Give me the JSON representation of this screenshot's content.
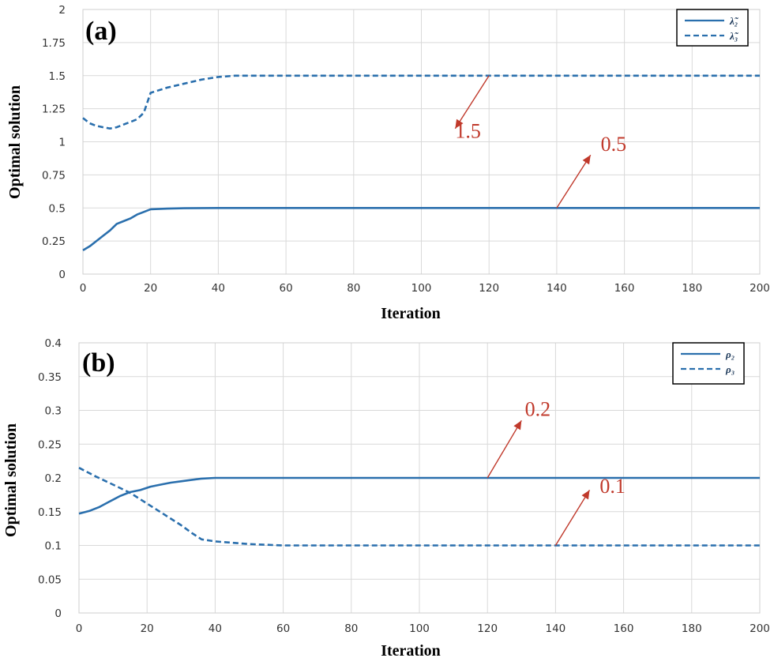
{
  "chart_data": [
    {
      "type": "line",
      "panel": "(a)",
      "xlabel": "Iteration",
      "ylabel": "Optimal solution",
      "xlim": [
        0,
        200
      ],
      "ylim": [
        0,
        2
      ],
      "xticks": [
        0,
        20,
        40,
        60,
        80,
        100,
        120,
        140,
        160,
        180,
        200
      ],
      "yticks": [
        0,
        0.25,
        0.5,
        0.75,
        1,
        1.25,
        1.5,
        1.75,
        2
      ],
      "ytick_labels": [
        "0",
        "0.25",
        "0.5",
        "0.75",
        "1",
        "1.25",
        "1.5",
        "1.75",
        "2"
      ],
      "grid": true,
      "legend_position": "top-right",
      "series": [
        {
          "name": "λ̃₂",
          "style": "solid",
          "color": "#2a6fad",
          "x": [
            0,
            2,
            4,
            6,
            8,
            10,
            12,
            14,
            16,
            18,
            20,
            25,
            30,
            40,
            60,
            100,
            140,
            200
          ],
          "y": [
            0.18,
            0.21,
            0.25,
            0.29,
            0.33,
            0.38,
            0.4,
            0.42,
            0.45,
            0.47,
            0.49,
            0.495,
            0.498,
            0.5,
            0.5,
            0.5,
            0.5,
            0.5
          ]
        },
        {
          "name": "λ̃₃",
          "style": "dashed",
          "color": "#2a6fad",
          "x": [
            0,
            2,
            4,
            6,
            8,
            10,
            12,
            14,
            16,
            18,
            20,
            25,
            30,
            35,
            40,
            45,
            60,
            100,
            150,
            200
          ],
          "y": [
            1.18,
            1.14,
            1.12,
            1.11,
            1.1,
            1.11,
            1.13,
            1.15,
            1.17,
            1.22,
            1.37,
            1.41,
            1.44,
            1.47,
            1.49,
            1.5,
            1.5,
            1.5,
            1.5,
            1.5
          ]
        }
      ],
      "annotations": [
        {
          "text": "1.5",
          "text_at": [
            110,
            1.03
          ],
          "arrow_from": [
            120,
            1.5
          ],
          "arrow_to": [
            110,
            1.1
          ]
        },
        {
          "text": "0.5",
          "text_at": [
            153,
            0.93
          ],
          "arrow_from": [
            140,
            0.5
          ],
          "arrow_to": [
            150,
            0.9
          ]
        }
      ]
    },
    {
      "type": "line",
      "panel": "(b)",
      "xlabel": "Iteration",
      "ylabel": "Optimal solution",
      "xlim": [
        0,
        200
      ],
      "ylim": [
        0,
        0.4
      ],
      "xticks": [
        0,
        20,
        40,
        60,
        80,
        100,
        120,
        140,
        160,
        180,
        200
      ],
      "yticks": [
        0,
        0.05,
        0.1,
        0.15,
        0.2,
        0.25,
        0.3,
        0.35,
        0.4
      ],
      "ytick_labels": [
        "0",
        "0.05",
        "0.1",
        "0.15",
        "0.2",
        "0.25",
        "0.3",
        "0.35",
        "0.4"
      ],
      "grid": true,
      "legend_position": "top-right",
      "series": [
        {
          "name": "ρ₂",
          "style": "solid",
          "color": "#2a6fad",
          "x": [
            0,
            3,
            6,
            9,
            12,
            15,
            18,
            21,
            24,
            27,
            30,
            33,
            36,
            40,
            60,
            100,
            200
          ],
          "y": [
            0.147,
            0.151,
            0.157,
            0.165,
            0.173,
            0.179,
            0.182,
            0.187,
            0.19,
            0.193,
            0.195,
            0.197,
            0.199,
            0.2,
            0.2,
            0.2,
            0.2
          ]
        },
        {
          "name": "ρ₃",
          "style": "dashed",
          "color": "#2a6fad",
          "x": [
            0,
            5,
            10,
            15,
            20,
            25,
            30,
            33,
            36,
            40,
            50,
            60,
            70,
            100,
            200
          ],
          "y": [
            0.215,
            0.202,
            0.19,
            0.178,
            0.162,
            0.146,
            0.13,
            0.119,
            0.109,
            0.106,
            0.102,
            0.1,
            0.1,
            0.1,
            0.1
          ]
        }
      ],
      "annotations": [
        {
          "text": "0.2",
          "text_at": [
            131,
            0.292
          ],
          "arrow_from": [
            120,
            0.2
          ],
          "arrow_to": [
            130,
            0.285
          ]
        },
        {
          "text": "0.1",
          "text_at": [
            153,
            0.178
          ],
          "arrow_from": [
            140,
            0.1
          ],
          "arrow_to": [
            150,
            0.182
          ]
        }
      ]
    }
  ]
}
